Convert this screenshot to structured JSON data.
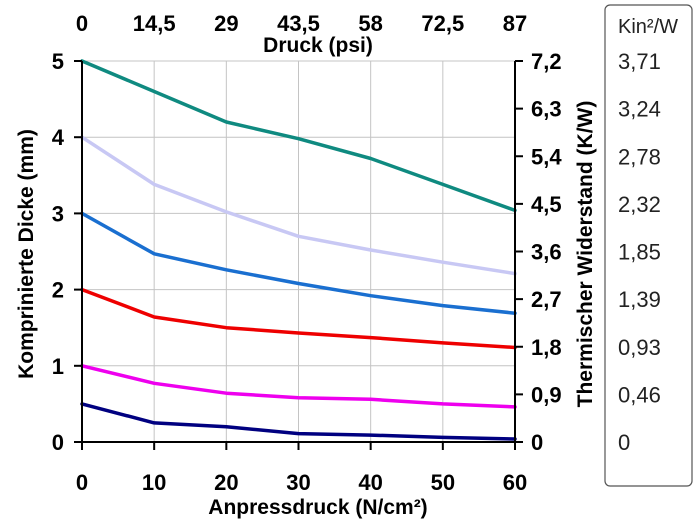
{
  "chart_data": {
    "type": "line",
    "xlabel": "Anpressdruck (N/cm²)",
    "x": [
      0,
      10,
      20,
      30,
      40,
      50,
      60
    ],
    "xlim": [
      0,
      60
    ],
    "xticks": [
      "0",
      "10",
      "20",
      "30",
      "40",
      "50",
      "60"
    ],
    "x2label": "Druck (psi)",
    "x2ticks": [
      "0",
      "14,5",
      "29",
      "43,5",
      "58",
      "72,5",
      "87"
    ],
    "ylabel": "Komprinierte Dicke (mm)",
    "ylim": [
      0,
      5
    ],
    "yticks": [
      "0",
      "1",
      "2",
      "3",
      "4",
      "5"
    ],
    "y2label": "Thermischer Widerstand (K/W)",
    "y2ticks": [
      "0",
      "0,9",
      "1,8",
      "2,7",
      "3,6",
      "4,5",
      "5,4",
      "6,3",
      "7,2"
    ],
    "y3label": "Kin²/W",
    "y3ticks": [
      "0",
      "0,46",
      "0,93",
      "1,39",
      "1,85",
      "2,32",
      "2,78",
      "3,24",
      "3,71"
    ],
    "grid": true,
    "series": [
      {
        "color": "#0f8a80",
        "values": [
          5.0,
          4.6,
          4.2,
          3.98,
          3.72,
          3.38,
          3.04
        ]
      },
      {
        "color": "#c8c8f4",
        "values": [
          4.0,
          3.38,
          3.02,
          2.7,
          2.52,
          2.36,
          2.21
        ]
      },
      {
        "color": "#1a6fd0",
        "values": [
          3.0,
          2.47,
          2.26,
          2.08,
          1.92,
          1.79,
          1.69
        ]
      },
      {
        "color": "#ee0000",
        "values": [
          2.0,
          1.64,
          1.5,
          1.43,
          1.37,
          1.3,
          1.24
        ]
      },
      {
        "color": "#ee00ee",
        "values": [
          1.0,
          0.77,
          0.64,
          0.58,
          0.56,
          0.5,
          0.46
        ]
      },
      {
        "color": "#000080",
        "values": [
          0.5,
          0.25,
          0.2,
          0.11,
          0.09,
          0.06,
          0.04
        ]
      }
    ]
  }
}
